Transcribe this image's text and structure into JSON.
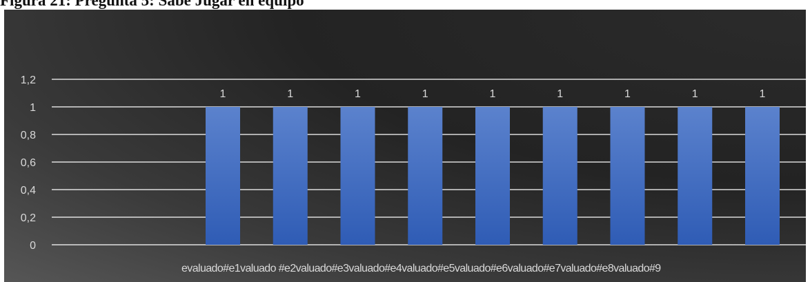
{
  "caption": "Figura 21: Pregunta 5: Sabe Jugar en equipo",
  "chart_data": {
    "type": "bar",
    "categories": [
      "evaluado#e1",
      "valuado #e2",
      "valuado#e3",
      "valuado#e4",
      "valuado#e5",
      "valuado#e6",
      "valuado#e7",
      "valuado#e8",
      "valuado#9"
    ],
    "values": [
      1,
      1,
      1,
      1,
      1,
      1,
      1,
      1,
      1
    ],
    "data_labels": [
      "1",
      "1",
      "1",
      "1",
      "1",
      "1",
      "1",
      "1",
      "1"
    ],
    "yticks": [
      "0",
      "0,2",
      "0,4",
      "0,6",
      "0,8",
      "1",
      "1,2"
    ],
    "ylim": [
      0,
      1.2
    ],
    "grid": true,
    "title": "",
    "xlabel": "",
    "ylabel": "",
    "colors": {
      "bar_top": "#5b82cd",
      "bar_bottom": "#2f5cb5",
      "grid": "#ffffff",
      "text": "#d9d9d9"
    }
  }
}
